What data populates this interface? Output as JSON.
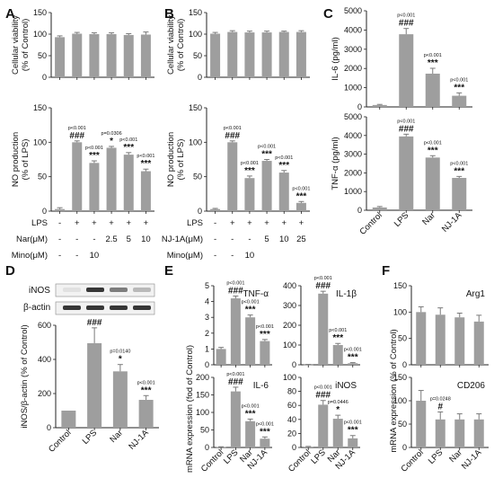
{
  "panels": {
    "A": "A",
    "B": "B",
    "C": "C",
    "D": "D",
    "E": "E",
    "F": "F"
  },
  "conditions": {
    "A": {
      "rows": [
        {
          "label": "LPS",
          "cells": [
            "-",
            "+",
            "+",
            "+",
            "+",
            "+"
          ]
        },
        {
          "label": "Nar(μM)",
          "cells": [
            "-",
            "-",
            "-",
            "2.5",
            "5",
            "10"
          ]
        },
        {
          "label": "Mino(μM)",
          "cells": [
            "-",
            "-",
            "10",
            "",
            "",
            ""
          ]
        }
      ]
    },
    "B": {
      "rows": [
        {
          "label": "LPS",
          "cells": [
            "-",
            "+",
            "+",
            "+",
            "+",
            "+"
          ]
        },
        {
          "label": "NJ-1A(μM)",
          "cells": [
            "-",
            "-",
            "-",
            "5",
            "10",
            "25"
          ]
        },
        {
          "label": "Mino(μM)",
          "cells": [
            "-",
            "-",
            "10",
            "",
            "",
            ""
          ]
        }
      ]
    }
  },
  "blot": {
    "labels": [
      "iNOS",
      "β-actin"
    ],
    "band_intensity": {
      "iNOS": [
        0.05,
        0.9,
        0.55,
        0.25
      ],
      "β-actin": [
        0.9,
        0.9,
        0.9,
        0.9
      ]
    }
  },
  "chart_data": [
    {
      "id": "A_top",
      "type": "bar",
      "panel": "A",
      "categories": [
        "1",
        "2",
        "3",
        "4",
        "5",
        "6"
      ],
      "values": [
        93,
        101,
        100,
        100,
        98,
        99
      ],
      "errors": [
        3,
        3,
        3,
        3,
        3,
        6
      ],
      "ylim": [
        0,
        150
      ],
      "yticks": [
        0,
        50,
        100,
        150
      ],
      "ylabel": [
        "Cellular viability",
        "(% of Control)"
      ],
      "annotations": []
    },
    {
      "id": "A_bottom",
      "type": "bar",
      "panel": "A",
      "categories": [
        "1",
        "2",
        "3",
        "4",
        "5",
        "6"
      ],
      "values": [
        3,
        100,
        70,
        92,
        82,
        58
      ],
      "errors": [
        2,
        2,
        3,
        2,
        3,
        3
      ],
      "ylim": [
        0,
        150
      ],
      "yticks": [
        0,
        50,
        100,
        150
      ],
      "ylabel": [
        "NO production",
        "(% of LPS)"
      ],
      "annotations": [
        {
          "bar": 1,
          "p": "p<0.001",
          "sig": "###"
        },
        {
          "bar": 2,
          "p": "p<0.001",
          "sig": "***"
        },
        {
          "bar": 3,
          "p": "p=0.0306",
          "sig": "*"
        },
        {
          "bar": 4,
          "p": "p<0.001",
          "sig": "***"
        },
        {
          "bar": 5,
          "p": "p<0.001",
          "sig": "***"
        }
      ]
    },
    {
      "id": "B_top",
      "type": "bar",
      "panel": "B",
      "categories": [
        "1",
        "2",
        "3",
        "4",
        "5",
        "6"
      ],
      "values": [
        101,
        105,
        104,
        104,
        105,
        105
      ],
      "errors": [
        3,
        3,
        3,
        3,
        2,
        3
      ],
      "ylim": [
        0,
        150
      ],
      "yticks": [
        0,
        50,
        100,
        150
      ],
      "ylabel": [
        "Cellular viability",
        "(% of Control)"
      ],
      "annotations": []
    },
    {
      "id": "B_bottom",
      "type": "bar",
      "panel": "B",
      "categories": [
        "1",
        "2",
        "3",
        "4",
        "5",
        "6"
      ],
      "values": [
        3,
        100,
        48,
        73,
        56,
        12
      ],
      "errors": [
        1,
        2,
        3,
        2,
        3,
        2
      ],
      "ylim": [
        0,
        150
      ],
      "yticks": [
        0,
        50,
        100,
        150
      ],
      "ylabel": [
        "NO production",
        "(% of LPS)"
      ],
      "annotations": [
        {
          "bar": 1,
          "p": "p<0.001",
          "sig": "###"
        },
        {
          "bar": 2,
          "p": "p<0.001",
          "sig": "***"
        },
        {
          "bar": 3,
          "p": "p<0.001",
          "sig": "***"
        },
        {
          "bar": 4,
          "p": "p<0.001",
          "sig": "***"
        },
        {
          "bar": 5,
          "p": "p<0.001",
          "sig": "***"
        }
      ]
    },
    {
      "id": "C_top",
      "type": "bar",
      "panel": "C",
      "categories": [
        "Control",
        "LPS",
        "Nar",
        "NJ-1A"
      ],
      "values": [
        100,
        3780,
        1730,
        580
      ],
      "errors": [
        30,
        300,
        280,
        150
      ],
      "ylim": [
        0,
        5000
      ],
      "yticks": [
        0,
        1000,
        2000,
        3000,
        4000,
        5000
      ],
      "ylabel": [
        "IL-6 (pg/ml)"
      ],
      "annotations": [
        {
          "bar": 1,
          "p": "p<0.001",
          "sig": "###"
        },
        {
          "bar": 2,
          "p": "p<0.001",
          "sig": "***"
        },
        {
          "bar": 3,
          "p": "p<0.001",
          "sig": "***"
        }
      ]
    },
    {
      "id": "C_bottom",
      "type": "bar",
      "panel": "C",
      "categories": [
        "Control",
        "LPS",
        "Nar",
        "NJ-1A"
      ],
      "values": [
        150,
        3950,
        2820,
        1730
      ],
      "errors": [
        50,
        120,
        100,
        80
      ],
      "ylim": [
        0,
        5000
      ],
      "yticks": [
        0,
        1000,
        2000,
        3000,
        4000,
        5000
      ],
      "ylabel": [
        "TNF-α (pg/ml)"
      ],
      "annotations": [
        {
          "bar": 1,
          "p": "p<0.001",
          "sig": "###"
        },
        {
          "bar": 2,
          "p": "p<0.001",
          "sig": "***"
        },
        {
          "bar": 3,
          "p": "p<0.001",
          "sig": "***"
        }
      ]
    },
    {
      "id": "D_main",
      "type": "bar",
      "panel": "D",
      "categories": [
        "Control",
        "LPS",
        "Nar",
        "NJ-1A"
      ],
      "values": [
        100,
        495,
        330,
        163
      ],
      "errors": [
        0,
        90,
        40,
        25
      ],
      "ylim": [
        0,
        600
      ],
      "yticks": [
        0,
        200,
        400,
        600
      ],
      "ylabel": [
        "iNOS/β-actin (% of Control)"
      ],
      "annotations": [
        {
          "bar": 1,
          "p": "",
          "sig": "###"
        },
        {
          "bar": 2,
          "p": "p=0.0140",
          "sig": "*"
        },
        {
          "bar": 3,
          "p": "p<0.001",
          "sig": "***"
        }
      ]
    },
    {
      "id": "E_tnf",
      "type": "bar",
      "panel": "E",
      "title": "TNF-α",
      "categories": [
        "Control",
        "LPS",
        "Nar",
        "NJ-1A"
      ],
      "values": [
        1.0,
        4.2,
        3.0,
        1.5
      ],
      "errors": [
        0.1,
        0.15,
        0.15,
        0.1
      ],
      "ylim": [
        0,
        5
      ],
      "yticks": [
        0,
        1,
        2,
        3,
        4,
        5
      ],
      "ylabel": [],
      "annotations": [
        {
          "bar": 1,
          "p": "p<0.001",
          "sig": "###"
        },
        {
          "bar": 2,
          "p": "p<0.001",
          "sig": "***"
        },
        {
          "bar": 3,
          "p": "p<0.001",
          "sig": "***"
        }
      ]
    },
    {
      "id": "E_il1b",
      "type": "bar",
      "panel": "E",
      "title": "IL-1β",
      "categories": [
        "Control",
        "LPS",
        "Nar",
        "NJ-1A"
      ],
      "values": [
        1,
        360,
        100,
        8
      ],
      "errors": [
        1,
        12,
        8,
        3
      ],
      "ylim": [
        0,
        400
      ],
      "yticks": [
        0,
        100,
        200,
        300,
        400
      ],
      "ylabel": [],
      "annotations": [
        {
          "bar": 1,
          "p": "p<0.001",
          "sig": "###"
        },
        {
          "bar": 2,
          "p": "p<0.001",
          "sig": "***"
        },
        {
          "bar": 3,
          "p": "p<0.001",
          "sig": "***"
        }
      ]
    },
    {
      "id": "E_il6",
      "type": "bar",
      "panel": "E",
      "title": "IL-6",
      "categories": [
        "Control",
        "LPS",
        "Nar",
        "NJ-1A"
      ],
      "values": [
        1,
        160,
        75,
        25
      ],
      "errors": [
        1,
        12,
        6,
        5
      ],
      "ylim": [
        0,
        200
      ],
      "yticks": [
        0,
        50,
        100,
        150,
        200
      ],
      "ylabel": [],
      "annotations": [
        {
          "bar": 1,
          "p": "p<0.001",
          "sig": "###"
        },
        {
          "bar": 2,
          "p": "p<0.001",
          "sig": "***"
        },
        {
          "bar": 3,
          "p": "p<0.001",
          "sig": "***"
        }
      ]
    },
    {
      "id": "E_inos",
      "type": "bar",
      "panel": "E",
      "title": "iNOS",
      "categories": [
        "Control",
        "LPS",
        "Nar",
        "NJ-1A"
      ],
      "values": [
        1,
        61,
        41,
        13
      ],
      "errors": [
        0.5,
        6,
        5,
        4
      ],
      "ylim": [
        0,
        100
      ],
      "yticks": [
        0,
        20,
        40,
        60,
        80,
        100
      ],
      "ylabel": [],
      "annotations": [
        {
          "bar": 1,
          "p": "p<0.001",
          "sig": "###"
        },
        {
          "bar": 2,
          "p": "p=0.0446",
          "sig": "*"
        },
        {
          "bar": 3,
          "p": "p<0.001",
          "sig": "***"
        }
      ]
    },
    {
      "id": "F_arg1",
      "type": "bar",
      "panel": "F",
      "title": "Arg1",
      "categories": [
        "Control",
        "LPS",
        "Nar",
        "NJ-1A"
      ],
      "values": [
        100,
        95,
        90,
        82
      ],
      "errors": [
        10,
        13,
        8,
        12
      ],
      "ylim": [
        0,
        150
      ],
      "yticks": [
        0,
        50,
        100,
        150
      ],
      "ylabel": [],
      "annotations": []
    },
    {
      "id": "F_cd206",
      "type": "bar",
      "panel": "F",
      "title": "CD206",
      "categories": [
        "Control",
        "LPS",
        "Nar",
        "NJ-1A"
      ],
      "values": [
        100,
        60,
        60,
        60
      ],
      "errors": [
        22,
        16,
        12,
        12
      ],
      "ylim": [
        0,
        150
      ],
      "yticks": [
        0,
        50,
        100,
        150
      ],
      "ylabel": [],
      "annotations": [
        {
          "bar": 1,
          "p": "p=0.0248",
          "sig": "#"
        }
      ]
    }
  ],
  "shared_labels": {
    "E_ylabel": "mRNA expression  (fod of Control)",
    "F_ylabel": "mRNA expression (% of Control)"
  }
}
